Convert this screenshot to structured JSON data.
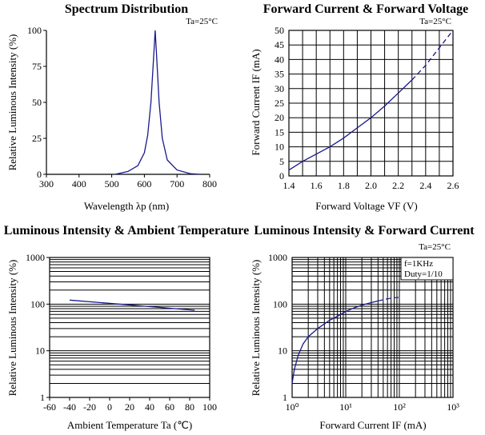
{
  "chart_data": [
    {
      "type": "line",
      "title": "Spectrum Distribution",
      "note": "Ta=25°C",
      "xlabel": "Wavelength λp (nm)",
      "ylabel": "Relative Luminous Intensity (%)",
      "xlim": [
        300,
        800
      ],
      "ylim": [
        0,
        100
      ],
      "xticks": [
        "300",
        "400",
        "500",
        "600",
        "700",
        "800"
      ],
      "yticks": [
        "0",
        "25",
        "50",
        "75",
        "100"
      ],
      "grid": false,
      "x": [
        510,
        550,
        580,
        600,
        610,
        620,
        628,
        633,
        638,
        645,
        655,
        670,
        700,
        740,
        770
      ],
      "y": [
        0,
        2,
        6,
        15,
        27,
        50,
        80,
        100,
        80,
        50,
        25,
        10,
        3,
        0.5,
        0
      ]
    },
    {
      "type": "line",
      "title": "Forward Current & Forward Voltage",
      "note": "Ta=25°C",
      "xlabel": "Forward Voltage  VF (V)",
      "ylabel": "Forward Current IF (mA)",
      "xlim": [
        1.4,
        2.6
      ],
      "ylim": [
        0,
        50
      ],
      "xticks": [
        "1.4",
        "1.6",
        "1.8",
        "2.0",
        "2.2",
        "2.4",
        "2.6"
      ],
      "yticks": [
        "0",
        "5",
        "10",
        "15",
        "20",
        "25",
        "30",
        "35",
        "40",
        "45",
        "50"
      ],
      "grid": true,
      "x": [
        1.4,
        1.5,
        1.6,
        1.7,
        1.8,
        1.9,
        2.0,
        2.1,
        2.2,
        2.3,
        2.4,
        2.5,
        2.6
      ],
      "y": [
        2,
        5,
        7.5,
        10,
        13,
        16.5,
        20,
        24,
        28.5,
        33,
        38,
        44,
        50
      ]
    },
    {
      "type": "line",
      "title": "Luminous Intensity & Ambient Temperature",
      "xlabel": "Ambient Temperature Ta (℃)",
      "ylabel": "Relative Luminous Intensity (%)",
      "xlim": [
        -60,
        100
      ],
      "ylim": [
        1,
        1000
      ],
      "yscale": "log",
      "xticks": [
        "-60",
        "-40",
        "-20",
        "0",
        "20",
        "40",
        "60",
        "80",
        "100"
      ],
      "yticks": [
        "1",
        "10",
        "100",
        "1000"
      ],
      "grid": "horizontal",
      "x": [
        -40,
        85
      ],
      "y": [
        122,
        74
      ]
    },
    {
      "type": "line",
      "title": "Luminous Intensity & Forward Current",
      "note": "Ta=25°C",
      "legend_text": [
        "f=1KHz",
        "Duty=1/10"
      ],
      "xlabel": "Forward Current IF (mA)",
      "ylabel": "Relative Luminous Intensity (%)",
      "xlim": [
        1,
        1000
      ],
      "ylim": [
        1,
        1000
      ],
      "xscale": "log",
      "yscale": "log",
      "xticks": [
        "10⁰",
        "10¹",
        "10²",
        "10³"
      ],
      "yticks": [
        "1",
        "10",
        "100",
        "1000"
      ],
      "grid": true,
      "x": [
        1,
        1.1,
        1.3,
        1.6,
        2,
        3,
        5,
        7,
        10,
        15,
        20,
        30,
        40,
        50,
        60,
        70,
        80,
        100
      ],
      "y": [
        2,
        4,
        8,
        14,
        20,
        30,
        45,
        55,
        70,
        85,
        95,
        108,
        117,
        124,
        130,
        134,
        137,
        140
      ]
    }
  ]
}
